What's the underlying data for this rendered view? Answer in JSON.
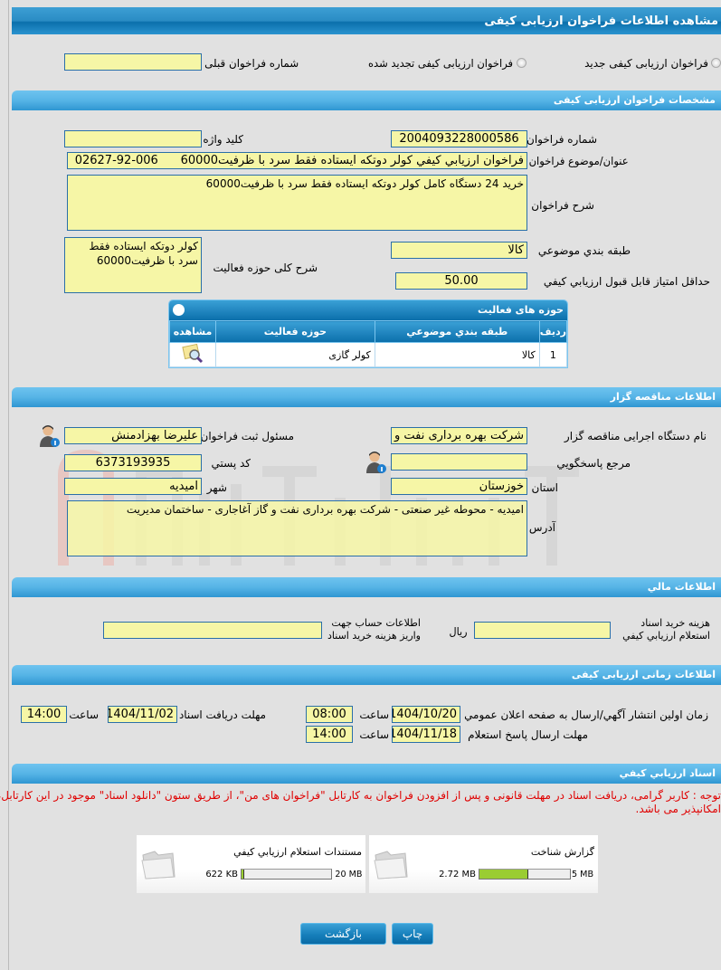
{
  "page_title": "مشاهده اطلاعات فراخوان ارزیابی کیفی",
  "type_options": {
    "new": "فراخوان ارزیابی کیفی جدید",
    "renewed": "فراخوان ارزیابی کیفی تجدید شده",
    "prev_number_label": "شماره فراخوان قبلی",
    "prev_number": ""
  },
  "spec": {
    "header": "مشخصات فراخوان ارزیابی کیفی",
    "number_label": "شماره فراخوان",
    "number": "2004093228000586",
    "keyword_label": "کلید واژه",
    "keyword": "",
    "subject_label": "عنوان/موضوع فراخوان",
    "subject": "فراخوان ارزيابي کيفي کولر دوتکه ایستاده فقط سرد با ظرفیت60000      006-92-02627",
    "desc_label": "شرح فراخوان",
    "desc": "خرید 24 دستگاه کامل کولر دوتکه ایستاده فقط سرد با ظرفیت60000",
    "category_label": "طبقه بندي موضوعي",
    "category": "کالا",
    "activity_desc_label": "شرح کلی حوزه فعالیت",
    "activity_desc": "کولر دوتکه ایستاده فقط سرد با ظرفیت60000",
    "min_score_label": "حداقل امتیاز قابل قبول ارزيابي کيفي",
    "min_score": "50.00"
  },
  "activities": {
    "title": "حوزه های فعالیت",
    "columns": [
      "رديف",
      "طبقه بندي موضوعي",
      "حوزه فعالیت",
      "مشاهده"
    ],
    "rows": [
      {
        "index": "1",
        "category": "کالا",
        "field": "کولر گازی"
      }
    ]
  },
  "organizer": {
    "header": "اطلاعات مناقصه گزار",
    "org_label": "نام دستگاه اجرایی مناقصه گزار",
    "org": "شرکت بهره برداری نفت و گ",
    "responsible_label": "مسئول ثبت فراخوان",
    "responsible": "علیرضا بهزادمنش",
    "ref_label": "مرجع پاسخگويي",
    "ref": "",
    "postal_label": "کد پستي",
    "postal": "6373193935",
    "province_label": "استان",
    "province": "خوزستان",
    "city_label": "شهر",
    "city": "امیدیه",
    "address_label": "آدرس",
    "address": "امیدیه - محوطه غیر صنعتی - شرکت بهره برداری نفت و گاز آغاجاری - ساختمان مدیریت",
    "watermark": "AriaTender.neT"
  },
  "finance": {
    "header": "اطلاعات مالي",
    "fee_label": "هزینه خرید اسناد استعلام ارزيابي کيفي",
    "fee": "",
    "currency": "ريال",
    "account_label": "اطلاعات حساب جهت واریز هزینه خرید اسناد",
    "account": ""
  },
  "timing": {
    "header": "اطلاعات زمانی ارزیابی کیفی",
    "publish_label": "زمان اولين انتشار آگهي/ارسال به صفحه اعلان عمومي",
    "publish_date": "1404/10/20",
    "publish_time": "08:00",
    "receive_label": "مهلت دریافت اسناد",
    "receive_date": "1404/11/02",
    "receive_time": "14:00",
    "reply_label": "مهلت ارسال پاسخ استعلام",
    "reply_date": "1404/11/18",
    "reply_time": "14:00",
    "time_label": "ساعت"
  },
  "documents": {
    "header": "اسناد ارزيابي کيفي",
    "note": "توجه : کاربر گرامی، دریافت اسناد در مهلت قانونی و پس از افزودن فراخوان به کارتابل \"فراخوان های من\"، از طریق ستون \"دانلود اسناد\" موجود در این کارتابل، امکانپذیر می باشد.",
    "files": [
      {
        "name": "گزارش شناخت",
        "used": "2.72 MB",
        "max": "5 MB",
        "percent": 54.4
      },
      {
        "name": "مستندات استعلام ارزيابي کيفي",
        "used": "622 KB",
        "max": "20 MB",
        "percent": 3
      }
    ]
  },
  "buttons": {
    "print": "چاپ",
    "back": "بازگشت"
  }
}
